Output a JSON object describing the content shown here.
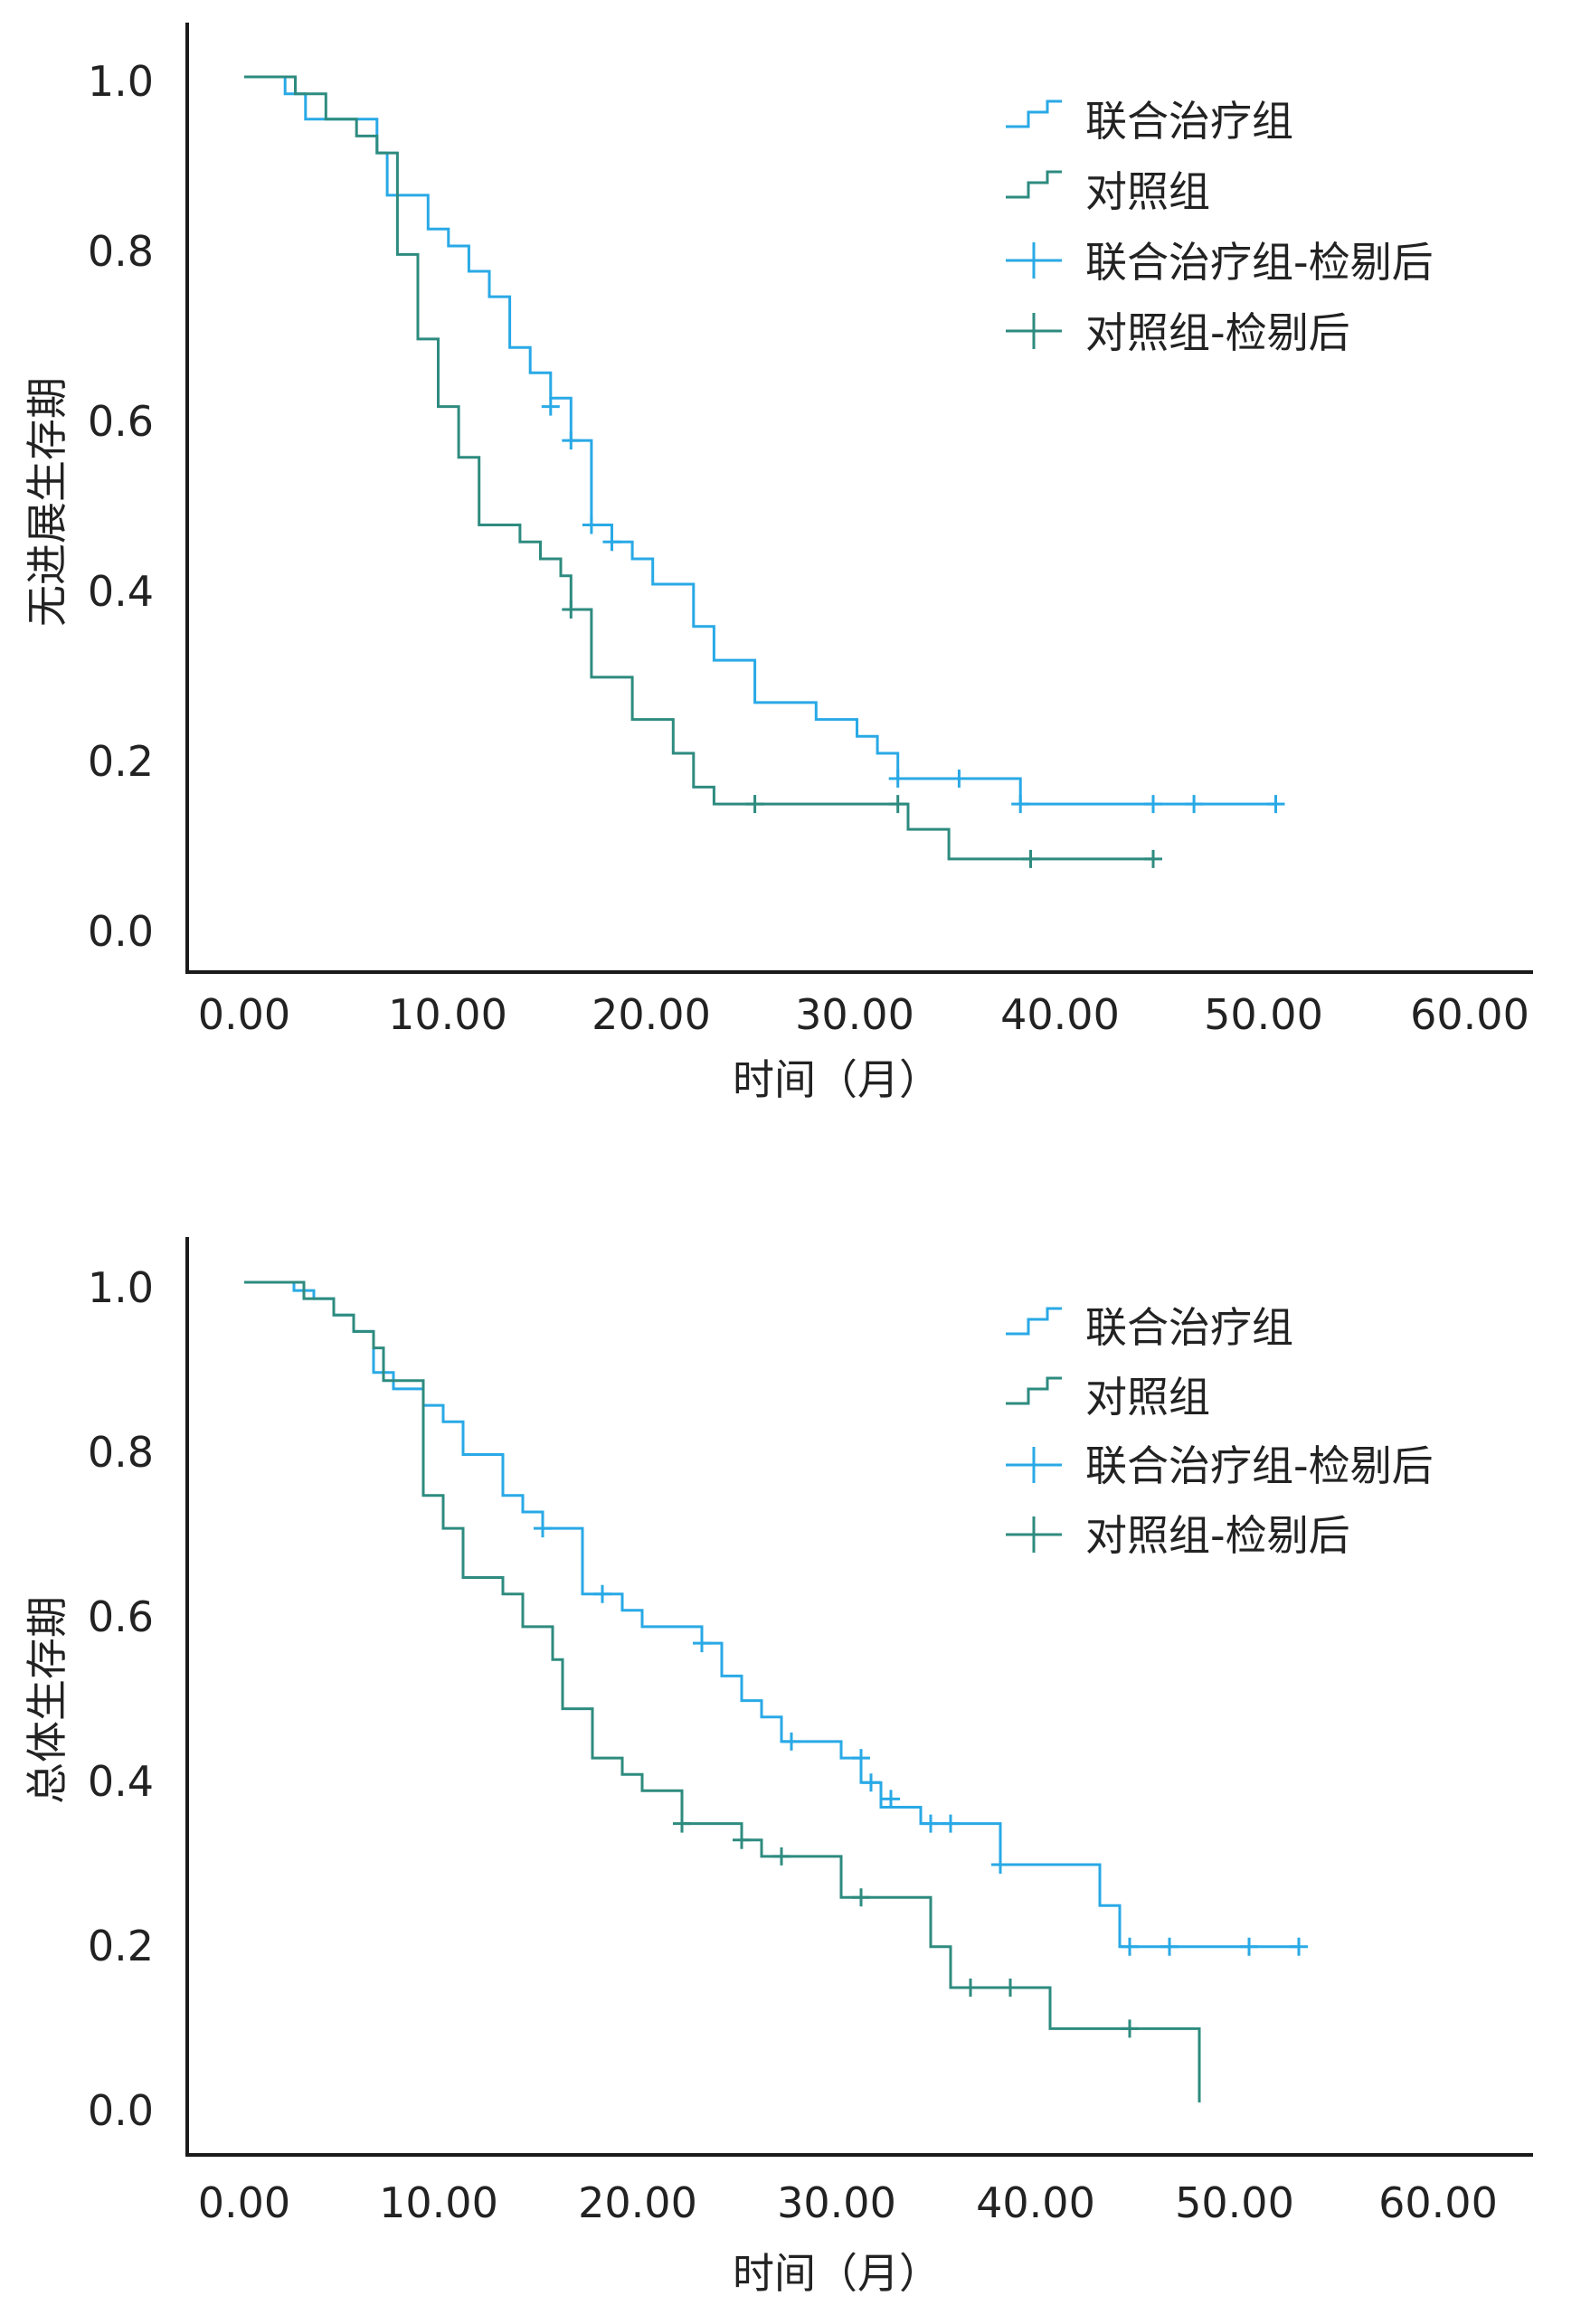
{
  "colors": {
    "treatment": "#29a9e6",
    "control": "#2e8b7f",
    "axis": "#1a1a1a",
    "text": "#222222"
  },
  "chart_data": [
    {
      "type": "line",
      "subtype": "kaplan-meier",
      "ylabel": "无进展生存期",
      "xlabel": "时间（月）",
      "xlim": [
        0,
        60
      ],
      "ylim": [
        0,
        1.0
      ],
      "x_ticks": [
        "0.00",
        "10.00",
        "20.00",
        "30.00",
        "40.00",
        "50.00",
        "60.00"
      ],
      "y_ticks": [
        "0.0",
        "0.2",
        "0.4",
        "0.6",
        "0.8",
        "1.0"
      ],
      "legend": [
        "联合治疗组",
        "对照组",
        "联合治疗组-检剔后",
        "对照组-检剔后"
      ],
      "legend_position": "top-right",
      "series": [
        {
          "name": "联合治疗组",
          "color_key": "treatment",
          "steps": [
            [
              0,
              1.0
            ],
            [
              2,
              0.98
            ],
            [
              3,
              0.95
            ],
            [
              6.5,
              0.91
            ],
            [
              7,
              0.86
            ],
            [
              9,
              0.82
            ],
            [
              10,
              0.8
            ],
            [
              11,
              0.77
            ],
            [
              12,
              0.74
            ],
            [
              13,
              0.68
            ],
            [
              14,
              0.65
            ],
            [
              15,
              0.62
            ],
            [
              16,
              0.57
            ],
            [
              17,
              0.47
            ],
            [
              18,
              0.45
            ],
            [
              19,
              0.43
            ],
            [
              20,
              0.4
            ],
            [
              22,
              0.35
            ],
            [
              23,
              0.31
            ],
            [
              25,
              0.26
            ],
            [
              28,
              0.24
            ],
            [
              30,
              0.22
            ],
            [
              31,
              0.2
            ],
            [
              32,
              0.17
            ],
            [
              38,
              0.14
            ]
          ],
          "end": 50.5,
          "censored": [
            [
              15,
              0.61
            ],
            [
              16,
              0.57
            ],
            [
              17,
              0.47
            ],
            [
              18,
              0.45
            ],
            [
              32,
              0.17
            ],
            [
              35,
              0.17
            ],
            [
              38,
              0.14
            ],
            [
              44.5,
              0.14
            ],
            [
              46.5,
              0.14
            ],
            [
              50.5,
              0.14
            ]
          ]
        },
        {
          "name": "对照组",
          "color_key": "control",
          "steps": [
            [
              0,
              1.0
            ],
            [
              2.5,
              0.98
            ],
            [
              4,
              0.95
            ],
            [
              5.5,
              0.93
            ],
            [
              6.5,
              0.91
            ],
            [
              7.5,
              0.79
            ],
            [
              8.5,
              0.69
            ],
            [
              9.5,
              0.61
            ],
            [
              10.5,
              0.55
            ],
            [
              11.5,
              0.47
            ],
            [
              13.5,
              0.45
            ],
            [
              14.5,
              0.43
            ],
            [
              15.5,
              0.41
            ],
            [
              16,
              0.37
            ],
            [
              17,
              0.29
            ],
            [
              19,
              0.24
            ],
            [
              21,
              0.2
            ],
            [
              22,
              0.16
            ],
            [
              23,
              0.14
            ],
            [
              32.5,
              0.11
            ],
            [
              34.5,
              0.075
            ]
          ],
          "end": 44.5,
          "censored": [
            [
              16,
              0.37
            ],
            [
              25,
              0.14
            ],
            [
              32,
              0.14
            ],
            [
              38.5,
              0.075
            ],
            [
              44.5,
              0.075
            ]
          ]
        }
      ]
    },
    {
      "type": "line",
      "subtype": "kaplan-meier",
      "ylabel": "总体生存期",
      "xlabel": "时间（月）",
      "xlim": [
        0,
        60
      ],
      "ylim": [
        0,
        1.0
      ],
      "x_ticks": [
        "0.00",
        "10.00",
        "20.00",
        "30.00",
        "40.00",
        "50.00",
        "60.00"
      ],
      "y_ticks": [
        "0.0",
        "0.2",
        "0.4",
        "0.6",
        "0.8",
        "1.0"
      ],
      "legend": [
        "联合治疗组",
        "对照组",
        "联合治疗组-检剔后",
        "对照组-检剔后"
      ],
      "legend_position": "top-right",
      "series": [
        {
          "name": "联合治疗组",
          "color_key": "treatment",
          "steps": [
            [
              0,
              1.0
            ],
            [
              2.5,
              0.99
            ],
            [
              3.5,
              0.98
            ],
            [
              4.5,
              0.96
            ],
            [
              5.5,
              0.94
            ],
            [
              6.5,
              0.89
            ],
            [
              7.5,
              0.87
            ],
            [
              9,
              0.85
            ],
            [
              10,
              0.83
            ],
            [
              11,
              0.79
            ],
            [
              13,
              0.74
            ],
            [
              14,
              0.72
            ],
            [
              15,
              0.7
            ],
            [
              17,
              0.62
            ],
            [
              19,
              0.6
            ],
            [
              20,
              0.58
            ],
            [
              23,
              0.56
            ],
            [
              24,
              0.52
            ],
            [
              25,
              0.49
            ],
            [
              26,
              0.47
            ],
            [
              27,
              0.44
            ],
            [
              30,
              0.42
            ],
            [
              31,
              0.39
            ],
            [
              32,
              0.36
            ],
            [
              34,
              0.34
            ],
            [
              38,
              0.29
            ],
            [
              43,
              0.24
            ],
            [
              44,
              0.19
            ]
          ],
          "end": 53,
          "censored": [
            [
              15,
              0.7
            ],
            [
              18,
              0.62
            ],
            [
              23,
              0.56
            ],
            [
              27.5,
              0.44
            ],
            [
              31,
              0.42
            ],
            [
              31.5,
              0.39
            ],
            [
              32.5,
              0.37
            ],
            [
              34.5,
              0.34
            ],
            [
              35.5,
              0.34
            ],
            [
              38,
              0.29
            ],
            [
              44.5,
              0.19
            ],
            [
              46.5,
              0.19
            ],
            [
              50.5,
              0.19
            ],
            [
              53,
              0.19
            ]
          ]
        },
        {
          "name": "对照组",
          "color_key": "control",
          "steps": [
            [
              0,
              1.0
            ],
            [
              3,
              0.98
            ],
            [
              4.5,
              0.96
            ],
            [
              5.5,
              0.94
            ],
            [
              6.5,
              0.92
            ],
            [
              7,
              0.88
            ],
            [
              9,
              0.74
            ],
            [
              10,
              0.7
            ],
            [
              11,
              0.64
            ],
            [
              13,
              0.62
            ],
            [
              14,
              0.58
            ],
            [
              15.5,
              0.54
            ],
            [
              16,
              0.48
            ],
            [
              17.5,
              0.42
            ],
            [
              19,
              0.4
            ],
            [
              20,
              0.38
            ],
            [
              22,
              0.34
            ],
            [
              25,
              0.32
            ],
            [
              26,
              0.3
            ],
            [
              30,
              0.25
            ],
            [
              34.5,
              0.19
            ],
            [
              35.5,
              0.14
            ],
            [
              40.5,
              0.09
            ],
            [
              48,
              0.0
            ]
          ],
          "end": 48,
          "censored": [
            [
              22,
              0.34
            ],
            [
              25,
              0.32
            ],
            [
              27,
              0.3
            ],
            [
              31,
              0.25
            ],
            [
              36.5,
              0.14
            ],
            [
              38.5,
              0.14
            ],
            [
              44.5,
              0.09
            ]
          ]
        }
      ]
    }
  ]
}
